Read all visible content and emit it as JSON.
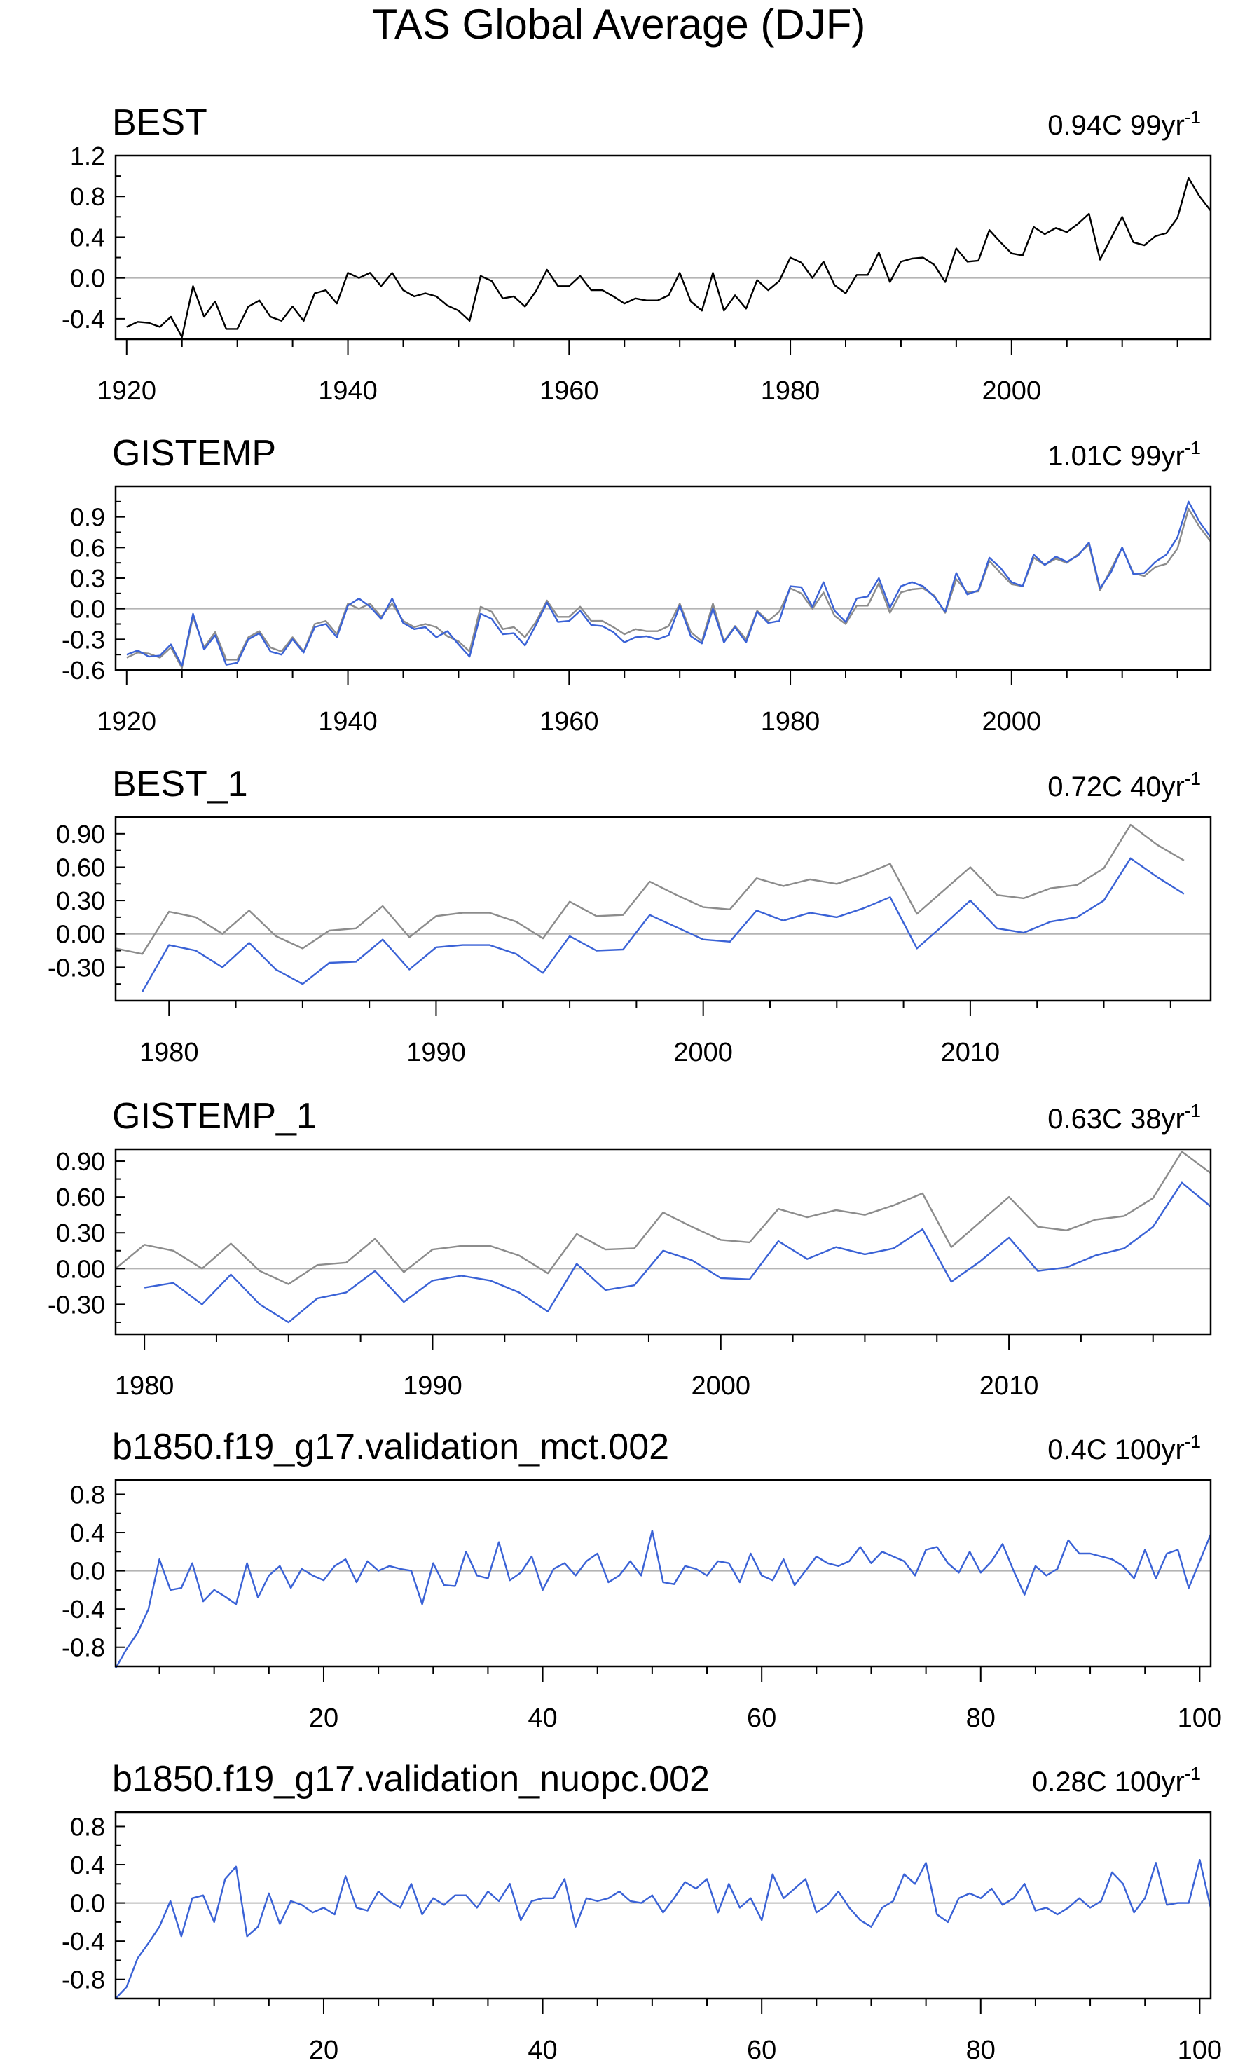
{
  "figure_title": "TAS Global Average (DJF)",
  "colors": {
    "obs": "#000000",
    "ref": "#8c8c8c",
    "model": "#3a62d6",
    "zero": "#b4b4b4",
    "frame": "#000000"
  },
  "chart_data": [
    {
      "type": "line",
      "title": "BEST",
      "trend_label": "0.94C 99yr",
      "trend_exponent": "-1",
      "xlim": [
        1919,
        2018
      ],
      "ylim": [
        -0.6,
        1.2
      ],
      "yticks": [
        -0.4,
        0.0,
        0.4,
        0.8,
        1.2
      ],
      "ytick_labels": [
        "-0.4",
        "0.0",
        "0.4",
        "0.8",
        "1.2"
      ],
      "xticks": [
        1920,
        1940,
        1960,
        1980,
        2000
      ],
      "xtick_labels": [
        "1920",
        "1940",
        "1960",
        "1980",
        "2000"
      ],
      "x_start": 1920,
      "series": [
        {
          "name": "BEST",
          "color": "#000000",
          "values": [
            -0.48,
            -0.43,
            -0.44,
            -0.48,
            -0.38,
            -0.58,
            -0.08,
            -0.38,
            -0.23,
            -0.5,
            -0.5,
            -0.28,
            -0.22,
            -0.38,
            -0.42,
            -0.28,
            -0.42,
            -0.15,
            -0.12,
            -0.25,
            0.05,
            0.0,
            0.05,
            -0.08,
            0.05,
            -0.12,
            -0.18,
            -0.15,
            -0.18,
            -0.27,
            -0.32,
            -0.42,
            0.02,
            -0.03,
            -0.2,
            -0.18,
            -0.28,
            -0.13,
            0.08,
            -0.08,
            -0.08,
            0.02,
            -0.12,
            -0.12,
            -0.18,
            -0.25,
            -0.2,
            -0.22,
            -0.22,
            -0.17,
            0.05,
            -0.23,
            -0.32,
            0.05,
            -0.32,
            -0.17,
            -0.3,
            -0.02,
            -0.12,
            -0.03,
            0.2,
            0.15,
            0.0,
            0.16,
            -0.07,
            -0.15,
            0.03,
            0.03,
            0.25,
            -0.04,
            0.16,
            0.19,
            0.2,
            0.13,
            -0.04,
            0.29,
            0.16,
            0.17,
            0.47,
            0.35,
            0.24,
            0.22,
            0.5,
            0.43,
            0.49,
            0.45,
            0.53,
            0.63,
            0.18,
            0.39,
            0.6,
            0.35,
            0.32,
            0.41,
            0.44,
            0.59,
            0.98,
            0.8,
            0.66
          ]
        }
      ]
    },
    {
      "type": "line",
      "title": "GISTEMP",
      "trend_label": "1.01C 99yr",
      "trend_exponent": "-1",
      "xlim": [
        1919,
        2018
      ],
      "ylim": [
        -0.6,
        1.2
      ],
      "yticks": [
        -0.6,
        -0.3,
        0.0,
        0.3,
        0.6,
        0.9
      ],
      "ytick_labels": [
        "-0.6",
        "-0.3",
        "0.0",
        "0.3",
        "0.6",
        "0.9"
      ],
      "xticks": [
        1920,
        1940,
        1960,
        1980,
        2000
      ],
      "xtick_labels": [
        "1920",
        "1940",
        "1960",
        "1980",
        "2000"
      ],
      "x_start": 1920,
      "series": [
        {
          "name": "BEST",
          "color": "#8c8c8c",
          "values": [
            -0.48,
            -0.43,
            -0.44,
            -0.48,
            -0.38,
            -0.58,
            -0.08,
            -0.38,
            -0.23,
            -0.5,
            -0.5,
            -0.28,
            -0.22,
            -0.38,
            -0.42,
            -0.28,
            -0.42,
            -0.15,
            -0.12,
            -0.25,
            0.05,
            0.0,
            0.05,
            -0.08,
            0.05,
            -0.12,
            -0.18,
            -0.15,
            -0.18,
            -0.27,
            -0.32,
            -0.42,
            0.02,
            -0.03,
            -0.2,
            -0.18,
            -0.28,
            -0.13,
            0.08,
            -0.08,
            -0.08,
            0.02,
            -0.12,
            -0.12,
            -0.18,
            -0.25,
            -0.2,
            -0.22,
            -0.22,
            -0.17,
            0.05,
            -0.23,
            -0.32,
            0.05,
            -0.32,
            -0.17,
            -0.3,
            -0.02,
            -0.12,
            -0.03,
            0.2,
            0.15,
            0.0,
            0.16,
            -0.07,
            -0.15,
            0.03,
            0.03,
            0.25,
            -0.04,
            0.16,
            0.19,
            0.2,
            0.13,
            -0.04,
            0.29,
            0.16,
            0.17,
            0.47,
            0.35,
            0.24,
            0.22,
            0.5,
            0.43,
            0.49,
            0.45,
            0.53,
            0.63,
            0.18,
            0.39,
            0.6,
            0.35,
            0.32,
            0.41,
            0.44,
            0.59,
            0.98,
            0.8,
            0.66
          ]
        },
        {
          "name": "GISTEMP",
          "color": "#3a62d6",
          "values": [
            -0.45,
            -0.41,
            -0.47,
            -0.46,
            -0.35,
            -0.56,
            -0.05,
            -0.4,
            -0.26,
            -0.55,
            -0.53,
            -0.3,
            -0.24,
            -0.42,
            -0.45,
            -0.3,
            -0.43,
            -0.18,
            -0.15,
            -0.28,
            0.03,
            0.1,
            0.02,
            -0.1,
            0.1,
            -0.14,
            -0.2,
            -0.18,
            -0.28,
            -0.22,
            -0.35,
            -0.47,
            -0.05,
            -0.1,
            -0.25,
            -0.24,
            -0.36,
            -0.16,
            0.06,
            -0.13,
            -0.12,
            -0.02,
            -0.16,
            -0.17,
            -0.23,
            -0.33,
            -0.28,
            -0.27,
            -0.3,
            -0.26,
            0.03,
            -0.27,
            -0.34,
            0.0,
            -0.33,
            -0.18,
            -0.33,
            -0.03,
            -0.14,
            -0.12,
            0.22,
            0.21,
            0.02,
            0.26,
            -0.02,
            -0.13,
            0.1,
            0.12,
            0.3,
            0.01,
            0.22,
            0.26,
            0.22,
            0.12,
            -0.03,
            0.35,
            0.14,
            0.18,
            0.5,
            0.4,
            0.26,
            0.22,
            0.53,
            0.43,
            0.51,
            0.46,
            0.52,
            0.65,
            0.2,
            0.36,
            0.6,
            0.34,
            0.35,
            0.46,
            0.53,
            0.7,
            1.05,
            0.85,
            0.7
          ]
        }
      ]
    },
    {
      "type": "line",
      "title": "BEST_1",
      "trend_label": "0.72C 40yr",
      "trend_exponent": "-1",
      "xlim": [
        1978,
        2019
      ],
      "ylim": [
        -0.6,
        1.05
      ],
      "yticks": [
        -0.3,
        0.0,
        0.3,
        0.6,
        0.9
      ],
      "ytick_labels": [
        "-0.30",
        "0.00",
        "0.30",
        "0.60",
        "0.90"
      ],
      "xticks": [
        1980,
        1990,
        2000,
        2010
      ],
      "xtick_labels": [
        "1980",
        "1990",
        "2000",
        "2010"
      ],
      "x_start": 1978,
      "series": [
        {
          "name": "BEST",
          "color": "#8c8c8c",
          "values": [
            -0.13,
            -0.18,
            0.2,
            0.15,
            0.0,
            0.21,
            -0.02,
            -0.13,
            0.03,
            0.05,
            0.25,
            -0.03,
            0.16,
            0.19,
            0.19,
            0.11,
            -0.04,
            0.29,
            0.16,
            0.17,
            0.47,
            0.35,
            0.24,
            0.22,
            0.5,
            0.43,
            0.49,
            0.45,
            0.53,
            0.63,
            0.18,
            0.39,
            0.6,
            0.35,
            0.32,
            0.41,
            0.44,
            0.59,
            0.98,
            0.8,
            0.66
          ]
        },
        {
          "name": "BEST_1",
          "color": "#3a62d6",
          "values": [
            null,
            -0.52,
            -0.1,
            -0.15,
            -0.3,
            -0.08,
            -0.32,
            -0.45,
            -0.26,
            -0.25,
            -0.05,
            -0.32,
            -0.12,
            -0.1,
            -0.1,
            -0.18,
            -0.35,
            -0.02,
            -0.15,
            -0.14,
            0.17,
            0.06,
            -0.05,
            -0.07,
            0.21,
            0.12,
            0.19,
            0.15,
            0.23,
            0.33,
            -0.13,
            0.08,
            0.3,
            0.05,
            0.01,
            0.11,
            0.15,
            0.3,
            0.68,
            0.51,
            0.36
          ]
        }
      ]
    },
    {
      "type": "line",
      "title": "GISTEMP_1",
      "trend_label": "0.63C 38yr",
      "trend_exponent": "-1",
      "xlim": [
        1979,
        2017
      ],
      "ylim": [
        -0.55,
        1.0
      ],
      "yticks": [
        -0.3,
        0.0,
        0.3,
        0.6,
        0.9
      ],
      "ytick_labels": [
        "-0.30",
        "0.00",
        "0.30",
        "0.60",
        "0.90"
      ],
      "xticks": [
        1980,
        1990,
        2000,
        2010
      ],
      "xtick_labels": [
        "1980",
        "1990",
        "2000",
        "2010"
      ],
      "x_start": 1979,
      "series": [
        {
          "name": "BEST",
          "color": "#8c8c8c",
          "values": [
            0.0,
            0.2,
            0.15,
            0.0,
            0.21,
            -0.02,
            -0.13,
            0.03,
            0.05,
            0.25,
            -0.03,
            0.16,
            0.19,
            0.19,
            0.11,
            -0.04,
            0.29,
            0.16,
            0.17,
            0.47,
            0.35,
            0.24,
            0.22,
            0.5,
            0.43,
            0.49,
            0.45,
            0.53,
            0.63,
            0.18,
            0.39,
            0.6,
            0.35,
            0.32,
            0.41,
            0.44,
            0.59,
            0.98,
            0.8
          ]
        },
        {
          "name": "GISTEMP_1",
          "color": "#3a62d6",
          "values": [
            null,
            -0.16,
            -0.12,
            -0.3,
            -0.05,
            -0.3,
            -0.45,
            -0.25,
            -0.2,
            -0.02,
            -0.28,
            -0.1,
            -0.06,
            -0.1,
            -0.2,
            -0.36,
            0.04,
            -0.18,
            -0.14,
            0.15,
            0.07,
            -0.08,
            -0.09,
            0.23,
            0.08,
            0.18,
            0.12,
            0.17,
            0.33,
            -0.11,
            0.06,
            0.26,
            -0.02,
            0.01,
            0.11,
            0.17,
            0.35,
            0.72,
            0.52
          ]
        }
      ]
    },
    {
      "type": "line",
      "title": "b1850.f19_g17.validation_mct.002",
      "trend_label": "0.4C 100yr",
      "trend_exponent": "-1",
      "xlim": [
        1,
        101
      ],
      "ylim": [
        -1.0,
        0.95
      ],
      "yticks": [
        -0.8,
        -0.4,
        0.0,
        0.4,
        0.8
      ],
      "ytick_labels": [
        "-0.8",
        "-0.4",
        "0.0",
        "0.4",
        "0.8"
      ],
      "xticks": [
        20,
        40,
        60,
        80,
        100
      ],
      "xtick_labels": [
        "20",
        "40",
        "60",
        "80",
        "100"
      ],
      "x_start": 1,
      "series": [
        {
          "name": "b1850.f19_g17.validation_mct.002",
          "color": "#3a62d6",
          "values": [
            -1.02,
            -0.82,
            -0.65,
            -0.4,
            0.12,
            -0.2,
            -0.18,
            0.08,
            -0.32,
            -0.2,
            -0.27,
            -0.35,
            0.08,
            -0.28,
            -0.05,
            0.05,
            -0.18,
            0.02,
            -0.05,
            -0.1,
            0.05,
            0.12,
            -0.12,
            0.1,
            0.0,
            0.05,
            0.02,
            0.0,
            -0.35,
            0.08,
            -0.15,
            -0.16,
            0.2,
            -0.05,
            -0.08,
            0.3,
            -0.1,
            -0.02,
            0.15,
            -0.2,
            0.02,
            0.08,
            -0.05,
            0.1,
            0.18,
            -0.12,
            -0.05,
            0.1,
            -0.05,
            0.42,
            -0.12,
            -0.14,
            0.05,
            0.02,
            -0.05,
            0.1,
            0.08,
            -0.12,
            0.18,
            -0.05,
            -0.1,
            0.12,
            -0.15,
            0.0,
            0.15,
            0.08,
            0.05,
            0.1,
            0.25,
            0.08,
            0.2,
            0.15,
            0.1,
            -0.05,
            0.22,
            0.25,
            0.08,
            -0.02,
            0.2,
            -0.02,
            0.1,
            0.28,
            0.0,
            -0.25,
            0.05,
            -0.05,
            0.02,
            0.32,
            0.18,
            0.18,
            0.15,
            0.12,
            0.05,
            -0.08,
            0.22,
            -0.08,
            0.18,
            0.22,
            -0.18,
            0.1,
            0.38
          ]
        }
      ]
    },
    {
      "type": "line",
      "title": "b1850.f19_g17.validation_nuopc.002",
      "trend_label": "0.28C 100yr",
      "trend_exponent": "-1",
      "xlim": [
        1,
        101
      ],
      "ylim": [
        -1.0,
        0.95
      ],
      "yticks": [
        -0.8,
        -0.4,
        0.0,
        0.4,
        0.8
      ],
      "ytick_labels": [
        "-0.8",
        "-0.4",
        "0.0",
        "0.4",
        "0.8"
      ],
      "xticks": [
        20,
        40,
        60,
        80,
        100
      ],
      "xtick_labels": [
        "20",
        "40",
        "60",
        "80",
        "100"
      ],
      "x_start": 1,
      "series": [
        {
          "name": "b1850.f19_g17.validation_nuopc.002",
          "color": "#3a62d6",
          "values": [
            -1.0,
            -0.88,
            -0.58,
            -0.42,
            -0.25,
            0.02,
            -0.35,
            0.05,
            0.08,
            -0.2,
            0.25,
            0.38,
            -0.35,
            -0.25,
            0.1,
            -0.22,
            0.02,
            -0.02,
            -0.1,
            -0.05,
            -0.12,
            0.28,
            -0.05,
            -0.08,
            0.12,
            0.02,
            -0.05,
            0.2,
            -0.12,
            0.05,
            -0.02,
            0.08,
            0.08,
            -0.05,
            0.12,
            0.02,
            0.2,
            -0.18,
            0.02,
            0.05,
            0.05,
            0.25,
            -0.25,
            0.05,
            0.02,
            0.05,
            0.12,
            0.02,
            0.0,
            0.08,
            -0.1,
            0.05,
            0.22,
            0.15,
            0.25,
            -0.1,
            0.2,
            -0.05,
            0.05,
            -0.18,
            0.3,
            0.05,
            0.15,
            0.25,
            -0.1,
            -0.02,
            0.12,
            -0.05,
            -0.18,
            -0.25,
            -0.05,
            0.02,
            0.3,
            0.2,
            0.42,
            -0.12,
            -0.2,
            0.05,
            0.1,
            0.05,
            0.15,
            -0.02,
            0.05,
            0.2,
            -0.08,
            -0.05,
            -0.12,
            -0.05,
            0.05,
            -0.05,
            0.02,
            0.32,
            0.2,
            -0.1,
            0.05,
            0.42,
            -0.02,
            0.0,
            0.0,
            0.45,
            -0.05
          ]
        }
      ]
    }
  ]
}
